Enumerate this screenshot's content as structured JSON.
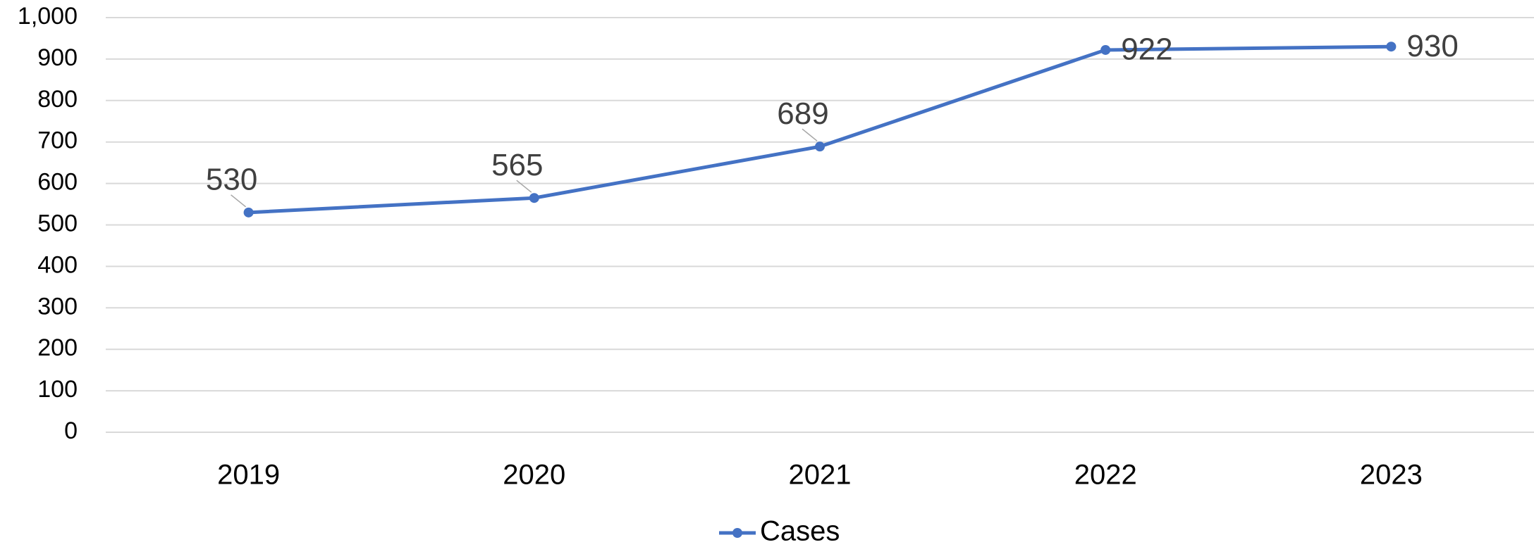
{
  "chart_data": {
    "type": "line",
    "categories": [
      "2019",
      "2020",
      "2021",
      "2022",
      "2023"
    ],
    "series": [
      {
        "name": "Cases",
        "values": [
          530,
          565,
          689,
          922,
          930
        ],
        "color": "#4472C4"
      }
    ],
    "data_labels": [
      "530",
      "565",
      "689",
      "922",
      "930"
    ],
    "y_ticks": [
      "0",
      "100",
      "200",
      "300",
      "400",
      "500",
      "600",
      "700",
      "800",
      "900",
      "1,000"
    ],
    "ylim": [
      0,
      1000
    ],
    "y_step": 100,
    "grid": true,
    "legend": {
      "position": "bottom",
      "entries": [
        "Cases"
      ]
    },
    "colors": {
      "gridline": "#d9d9d9",
      "label_text": "#404040",
      "tick_text": "#000000"
    }
  }
}
